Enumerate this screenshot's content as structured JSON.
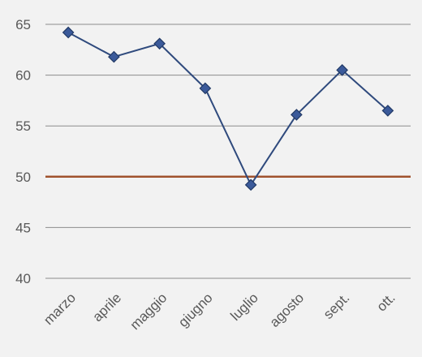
{
  "chart_data": {
    "type": "line",
    "categories": [
      "marzo",
      "aprile",
      "maggio",
      "giugno",
      "luglio",
      "agosto",
      "sept.",
      "ott."
    ],
    "series": [
      {
        "values": [
          64.2,
          61.8,
          63.1,
          58.7,
          49.2,
          56.1,
          60.5,
          56.5
        ],
        "color": "#2f4a7d",
        "marker": "diamond"
      }
    ],
    "reference_line": {
      "value": 50,
      "color": "#a0522d"
    },
    "ylim": [
      40,
      65
    ],
    "yticks": [
      "40",
      "45",
      "50",
      "55",
      "60",
      "65"
    ],
    "grid": true,
    "legend": "none",
    "background": "#f2f2f2",
    "grid_color": "#8c8c8c",
    "text_color": "#595959"
  }
}
